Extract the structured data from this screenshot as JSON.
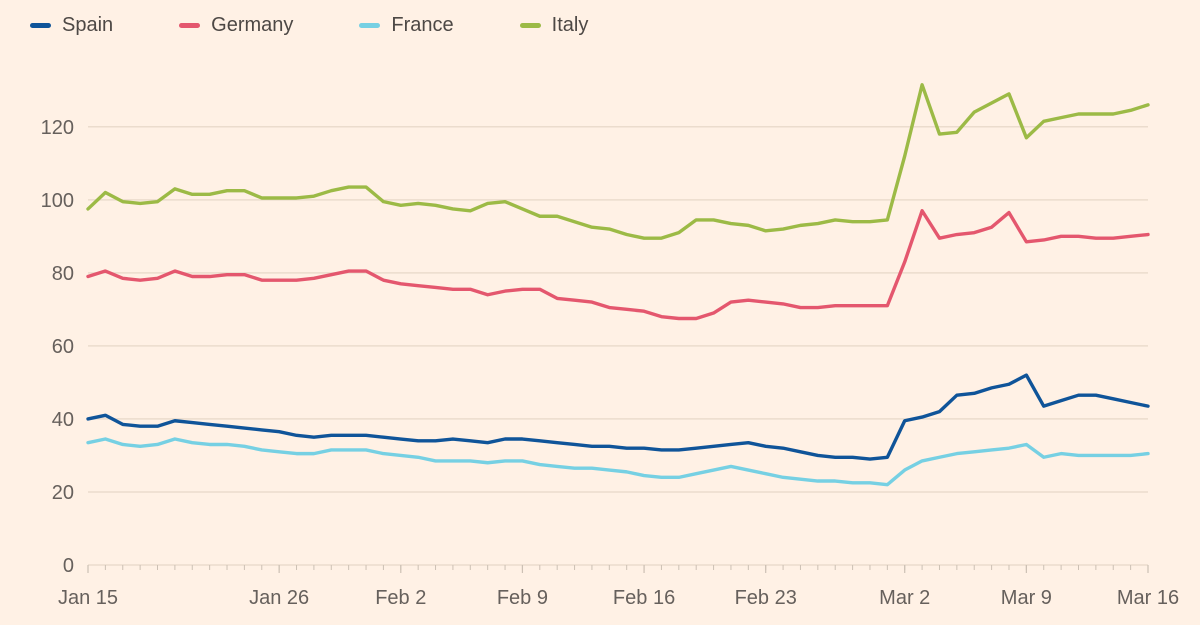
{
  "chart_data": {
    "type": "line",
    "title": "",
    "legend_position": "top-left",
    "grid": true,
    "x_axis": {
      "unit": "day",
      "total_days": 61,
      "ticks": [
        {
          "label": "Jan 15",
          "day": 0
        },
        {
          "label": "Jan 26",
          "day": 11
        },
        {
          "label": "Feb 2",
          "day": 18
        },
        {
          "label": "Feb 9",
          "day": 25
        },
        {
          "label": "Feb 16",
          "day": 32
        },
        {
          "label": "Feb 23",
          "day": 39
        },
        {
          "label": "Mar 2",
          "day": 47
        },
        {
          "label": "Mar 9",
          "day": 54
        },
        {
          "label": "Mar 16",
          "day": 61
        }
      ]
    },
    "y_axis": {
      "ticks": [
        0,
        20,
        40,
        60,
        80,
        100,
        120
      ],
      "range": [
        0,
        135
      ]
    },
    "series": [
      {
        "name": "Spain",
        "color": "#0F5499",
        "values": [
          40,
          41,
          38.5,
          38,
          38,
          39.5,
          39,
          38.5,
          38,
          37.5,
          37,
          36.5,
          35.5,
          35,
          35.5,
          35.5,
          35.5,
          35,
          34.5,
          34,
          34,
          34.5,
          34,
          33.5,
          34.5,
          34.5,
          34,
          33.5,
          33,
          32.5,
          32.5,
          32,
          32,
          31.5,
          31.5,
          32,
          32.5,
          33,
          33.5,
          32.5,
          32,
          31,
          30,
          29.5,
          29.5,
          29,
          29.5,
          39.5,
          40.5,
          42,
          46.5,
          47,
          48.5,
          49.5,
          52,
          43.5,
          45,
          46.5,
          46.5,
          45.5,
          44.5,
          43.5
        ]
      },
      {
        "name": "Germany",
        "color": "#E4576E",
        "values": [
          79,
          80.5,
          78.5,
          78,
          78.5,
          80.5,
          79,
          79,
          79.5,
          79.5,
          78,
          78,
          78,
          78.5,
          79.5,
          80.5,
          80.5,
          78,
          77,
          76.5,
          76,
          75.5,
          75.5,
          74,
          75,
          75.5,
          75.5,
          73,
          72.5,
          72,
          70.5,
          70,
          69.5,
          68,
          67.5,
          67.5,
          69,
          72,
          72.5,
          72,
          71.5,
          70.5,
          70.5,
          71,
          71,
          71,
          71,
          83,
          97,
          89.5,
          90.5,
          91,
          92.5,
          96.5,
          88.5,
          89,
          90,
          90,
          89.5,
          89.5,
          90,
          90.5
        ]
      },
      {
        "name": "France",
        "color": "#76D0E3",
        "values": [
          33.5,
          34.5,
          33,
          32.5,
          33,
          34.5,
          33.5,
          33,
          33,
          32.5,
          31.5,
          31,
          30.5,
          30.5,
          31.5,
          31.5,
          31.5,
          30.5,
          30,
          29.5,
          28.5,
          28.5,
          28.5,
          28,
          28.5,
          28.5,
          27.5,
          27,
          26.5,
          26.5,
          26,
          25.5,
          24.5,
          24,
          24,
          25,
          26,
          27,
          26,
          25,
          24,
          23.5,
          23,
          23,
          22.5,
          22.5,
          22,
          26,
          28.5,
          29.5,
          30.5,
          31,
          31.5,
          32,
          33,
          29.5,
          30.5,
          30,
          30,
          30,
          30,
          30.5
        ]
      },
      {
        "name": "Italy",
        "color": "#9CBA46",
        "values": [
          97.5,
          102,
          99.5,
          99,
          99.5,
          103,
          101.5,
          101.5,
          102.5,
          102.5,
          100.5,
          100.5,
          100.5,
          101,
          102.5,
          103.5,
          103.5,
          99.5,
          98.5,
          99,
          98.5,
          97.5,
          97,
          99,
          99.5,
          97.5,
          95.5,
          95.5,
          94,
          92.5,
          92,
          90.5,
          89.5,
          89.5,
          91,
          94.5,
          94.5,
          93.5,
          93,
          91.5,
          92,
          93,
          93.5,
          94.5,
          94,
          94,
          94.5,
          112,
          131.5,
          118,
          118.5,
          124,
          126.5,
          129,
          117,
          121.5,
          122.5,
          123.5,
          123.5,
          123.5,
          124.5,
          126
        ]
      }
    ]
  },
  "theme": {
    "background": "#FFF1E5",
    "grid_color": "#EBDCCD",
    "tick_color": "#CCC0B4",
    "axis_text_color": "#66605C",
    "legend_text_color": "#4D4845"
  }
}
